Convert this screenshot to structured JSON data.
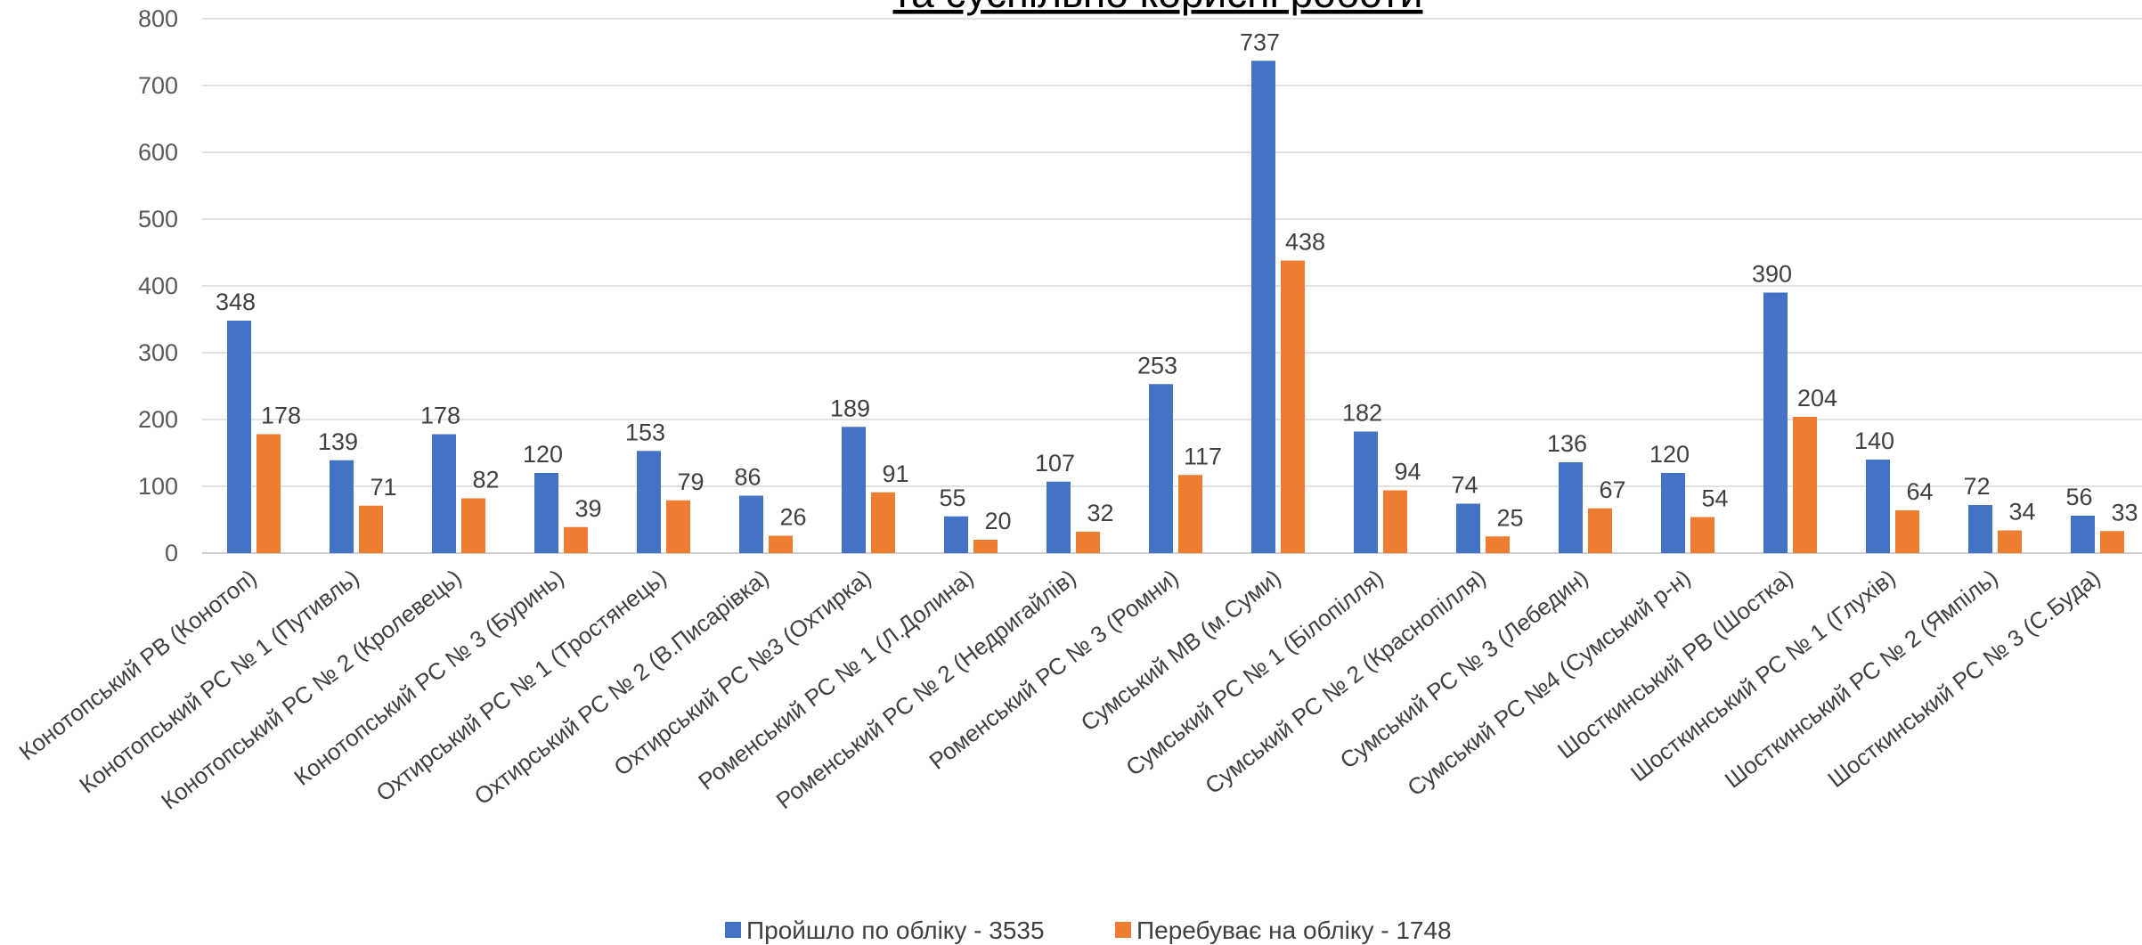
{
  "chart_data": {
    "type": "bar",
    "title": "та суспільно корисні роботи",
    "xlabel": "",
    "ylabel": "",
    "ylim": [
      0,
      800
    ],
    "yticks": [
      0,
      100,
      200,
      300,
      400,
      500,
      600,
      700,
      800
    ],
    "grid": true,
    "legend_position": "bottom",
    "categories": [
      "Конотопський РВ (Конотоп)",
      "Конотопський РС № 1 (Путивль)",
      "Конотопський РС № 2 (Кролевець)",
      "Конотопський РС № 3 (Буринь)",
      "Охтирський РС № 1 (Тростянець)",
      "Охтирський РС № 2 (В.Писарівка)",
      "Охтирський РС №3 (Охтирка)",
      "Роменський РС № 1 (Л.Долина)",
      "Роменський РС № 2 (Недригайлів)",
      "Роменський РС № 3 (Ромни)",
      "Сумський МВ (м.Суми)",
      "Сумський РС № 1 (Білопілля)",
      "Сумський РС № 2 (Краснопілля)",
      "Сумський РС № 3 (Лебедин)",
      "Сумський РС №4 (Сумський р-н)",
      "Шосткинський РВ (Шостка)",
      "Шосткинський РС № 1 (Глухів)",
      "Шосткинський РС № 2 (Ямпіль)",
      "Шосткинський РС № 3 (С.Буда)"
    ],
    "series": [
      {
        "name": "Пройшло по обліку - 3535",
        "color": "#4472C4",
        "values": [
          348,
          139,
          178,
          120,
          153,
          86,
          189,
          55,
          107,
          253,
          737,
          182,
          74,
          136,
          120,
          390,
          140,
          72,
          56
        ]
      },
      {
        "name": "Перебуває на обліку - 1748",
        "color": "#ED7D31",
        "values": [
          178,
          71,
          82,
          39,
          79,
          26,
          91,
          20,
          32,
          117,
          438,
          94,
          25,
          67,
          54,
          204,
          64,
          34,
          33
        ]
      }
    ]
  }
}
